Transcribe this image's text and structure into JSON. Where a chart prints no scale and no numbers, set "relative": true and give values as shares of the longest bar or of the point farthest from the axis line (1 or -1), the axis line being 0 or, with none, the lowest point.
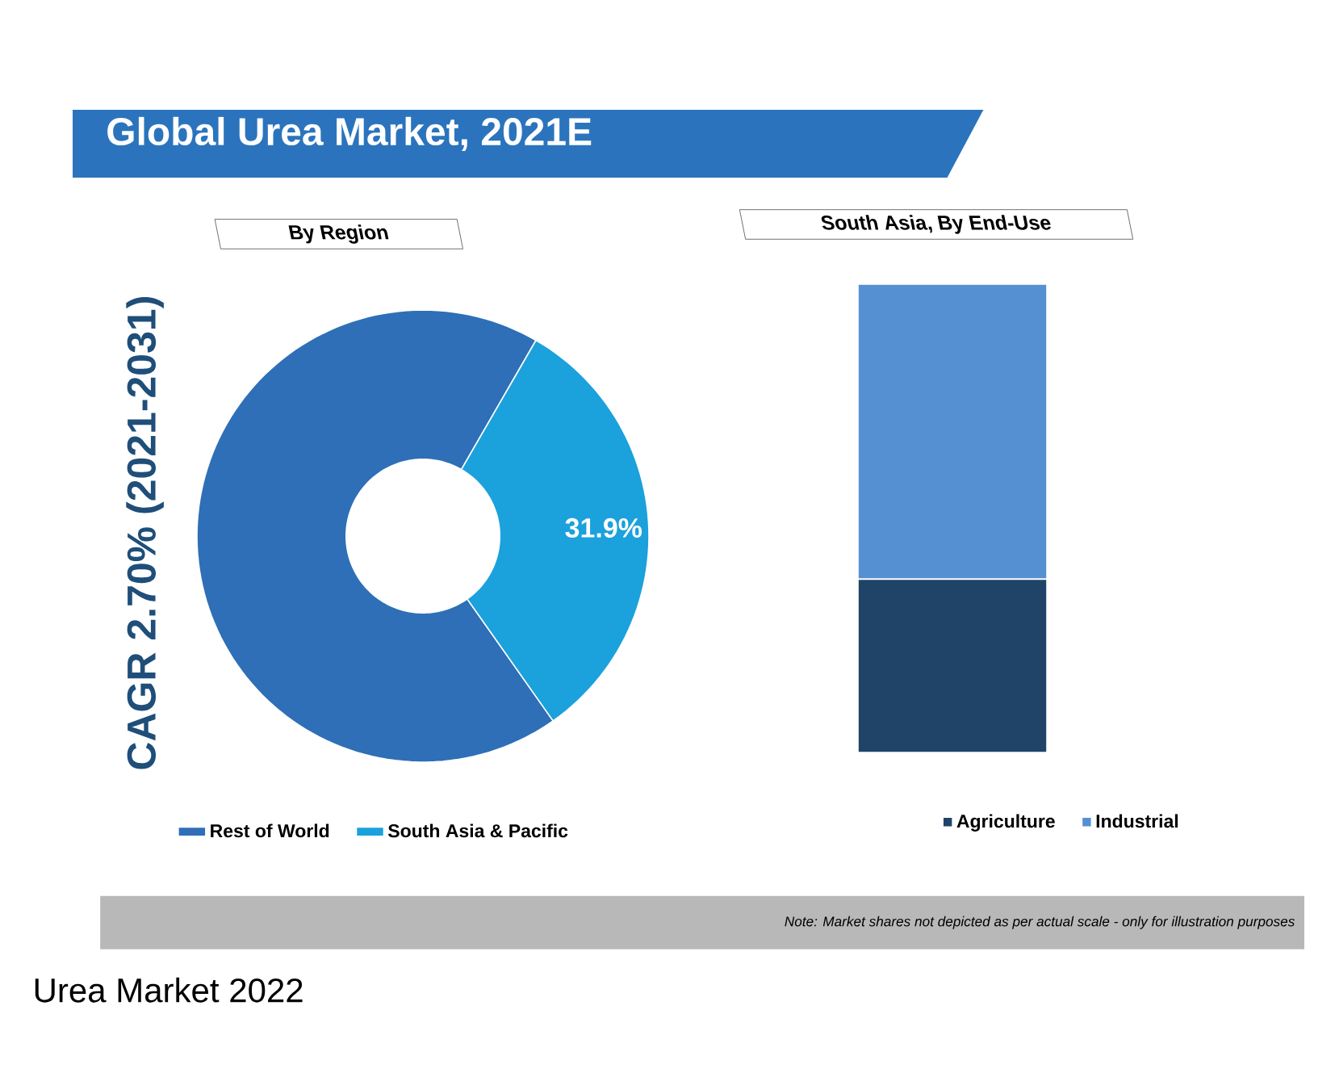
{
  "chart_data": [
    {
      "type": "donut",
      "title": "Global Urea Market, 2021E",
      "subtitle": "By Region",
      "categories": [
        "Rest of World",
        "South Asia & Pacific"
      ],
      "values": [
        68.1,
        31.9
      ],
      "colors": [
        "#2e6fb7",
        "#1ba1dc"
      ],
      "value_labels": [
        null,
        "31.9%"
      ],
      "legend": "bottom",
      "annotations": [
        "CAGR 2.70% (2021-2031)",
        "*Note: Market shares not depicted as per actual scale - only for illustration purposes*",
        "Urea Market 2022"
      ]
    },
    {
      "type": "bar",
      "title": "South Asia, By End-Use",
      "categories": [
        null
      ],
      "stacked": true,
      "relative": true,
      "legend": "bottom",
      "series": [
        {
          "name": "Agriculture",
          "color": "#1f4467",
          "values": [
            0.37
          ]
        },
        {
          "name": "Industrial",
          "color": "#5590d3",
          "values": [
            0.63
          ]
        }
      ]
    }
  ]
}
